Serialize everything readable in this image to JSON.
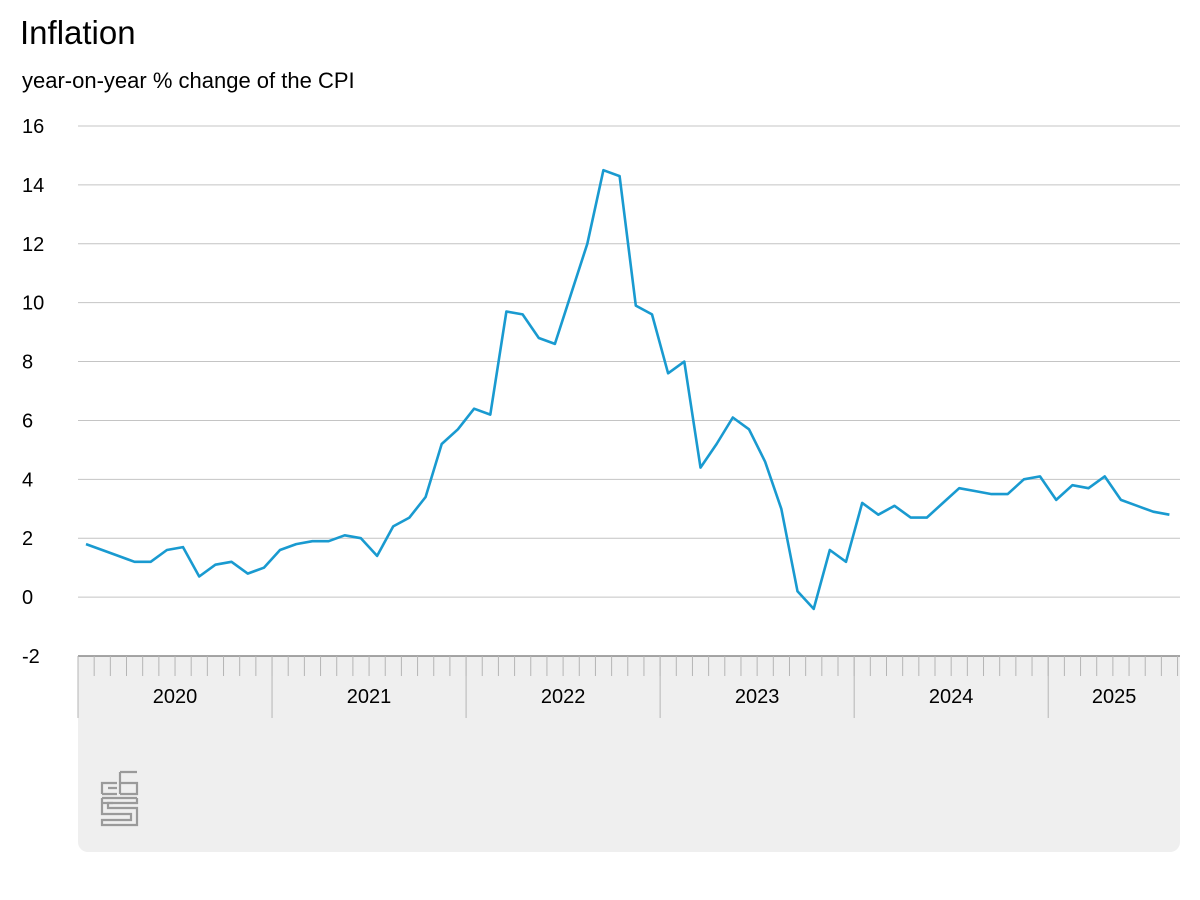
{
  "chart_data": {
    "type": "line",
    "title": "Inflation",
    "subtitle": "year-on-year % change of the CPI",
    "ylim": [
      -2,
      16
    ],
    "yticks": [
      16,
      14,
      12,
      10,
      8,
      6,
      4,
      2,
      0,
      -2
    ],
    "grid": true,
    "x_labels": [
      "2020",
      "2021",
      "2022",
      "2023",
      "2024",
      "2025"
    ],
    "x_start": "2020-01",
    "series": [
      {
        "color": "#199ad0",
        "values": [
          1.8,
          1.6,
          1.4,
          1.2,
          1.2,
          1.6,
          1.7,
          0.7,
          1.1,
          1.2,
          0.8,
          1.0,
          1.6,
          1.8,
          1.9,
          1.9,
          2.1,
          2.0,
          1.4,
          2.4,
          2.7,
          3.4,
          5.2,
          5.7,
          6.4,
          6.2,
          9.7,
          9.6,
          8.8,
          8.6,
          10.3,
          12.0,
          14.5,
          14.3,
          9.9,
          9.6,
          7.6,
          8.0,
          4.4,
          5.2,
          6.1,
          5.7,
          4.6,
          3.0,
          0.2,
          -0.4,
          1.6,
          1.2,
          3.2,
          2.8,
          3.1,
          2.7,
          2.7,
          3.2,
          3.7,
          3.6,
          3.5,
          3.5,
          4.0,
          4.1,
          3.3,
          3.8,
          3.7,
          4.1,
          3.3,
          3.1,
          2.9,
          2.8
        ]
      }
    ]
  },
  "logo": {
    "name": "cbs"
  }
}
